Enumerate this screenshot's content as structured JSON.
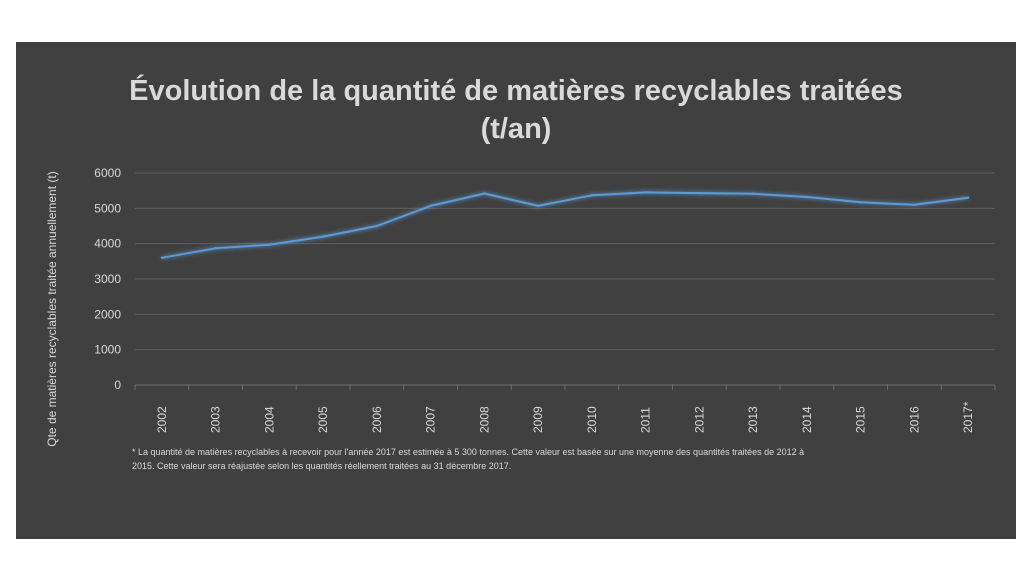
{
  "chart_data": {
    "type": "line",
    "title_line1": "Évolution de la quantité de matières recyclables traitées",
    "title_line2": "(t/an)",
    "xlabel": "",
    "ylabel": "Qte de matières recyclables traitée annuellement (t)",
    "ylim": [
      0,
      6000
    ],
    "yticks": [
      0,
      1000,
      2000,
      3000,
      4000,
      5000,
      6000
    ],
    "grid": true,
    "categories": [
      "2002",
      "2003",
      "2004",
      "2005",
      "2006",
      "2007",
      "2008",
      "2009",
      "2010",
      "2011",
      "2012",
      "2013",
      "2014",
      "2015",
      "2016",
      "2017*"
    ],
    "series": [
      {
        "values": [
          3600,
          3870,
          3970,
          4200,
          4500,
          5070,
          5420,
          5070,
          5370,
          5450,
          5430,
          5410,
          5320,
          5170,
          5100,
          5300
        ],
        "color": "#5b9bd5"
      }
    ],
    "footnote_line1": "* La quantité de matières recyclables à recevoir pour l'année 2017 est estimée à 5 300  tonnes. Cette valeur est basée sur une moyenne des quantités traitées de 2012 à",
    "footnote_line2": "2015.  Cette valeur sera réajustée selon les quantités réellement traitées au 31 décembre 2017."
  }
}
